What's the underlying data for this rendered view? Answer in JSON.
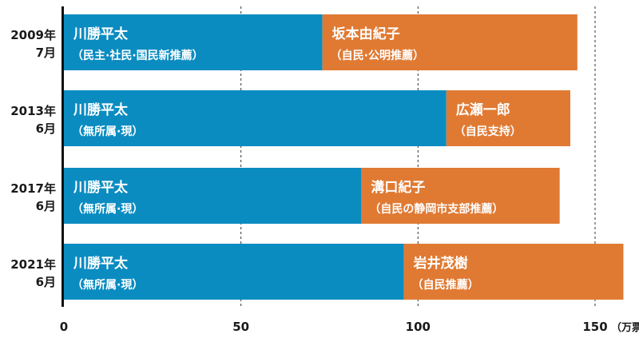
{
  "chart_data": {
    "type": "bar",
    "orientation": "horizontal",
    "stacked": true,
    "categories": [
      [
        "2009年",
        "7月"
      ],
      [
        "2013年",
        "6月"
      ],
      [
        "2017年",
        "6月"
      ],
      [
        "2021年",
        "6月"
      ]
    ],
    "series": [
      {
        "color": "#0a8cc1",
        "values": [
          73,
          108,
          84,
          96
        ],
        "labels": [
          {
            "name": "川勝平太",
            "sub": "（民主·社民·国民新推薦）"
          },
          {
            "name": "川勝平太",
            "sub": "（無所属·現）"
          },
          {
            "name": "川勝平太",
            "sub": "（無所属·現）"
          },
          {
            "name": "川勝平太",
            "sub": "（無所属·現）"
          }
        ]
      },
      {
        "color": "#e07a33",
        "values": [
          72,
          35,
          56,
          62
        ],
        "labels": [
          {
            "name": "坂本由紀子",
            "sub": "（自民·公明推薦）"
          },
          {
            "name": "広瀬一郎",
            "sub": "（自民支持）"
          },
          {
            "name": "溝口紀子",
            "sub": "（自民の静岡市支部推薦）"
          },
          {
            "name": "岩井茂樹",
            "sub": "（自民推薦）"
          }
        ]
      }
    ],
    "x_ticks": [
      0,
      50,
      100,
      150
    ],
    "x_unit": "（万票）",
    "xlim": [
      0,
      158
    ],
    "grid": "vertical dashed at 50, 100, 150"
  }
}
